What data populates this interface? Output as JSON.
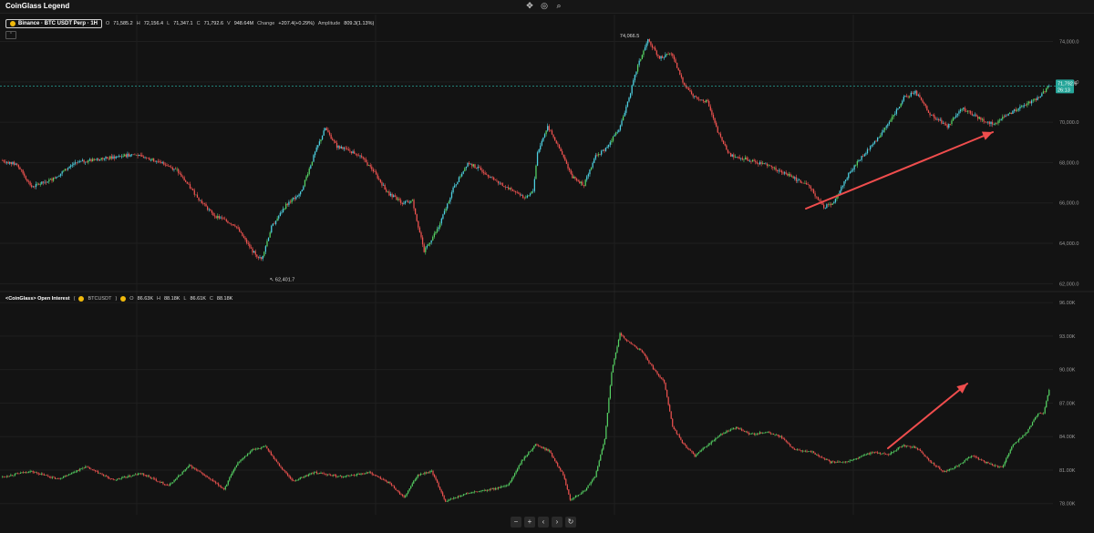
{
  "app": {
    "title": "CoinGlass Legend"
  },
  "toolbar": {
    "icons": [
      "crosshair-icon",
      "camera-icon",
      "search-icon"
    ]
  },
  "price_legend": {
    "symbol": "Binance · BTC USDT Perp · 1H",
    "open_label": "O",
    "open": "71,585.2",
    "high_label": "H",
    "high": "72,156.4",
    "low_label": "L",
    "low": "71,347.1",
    "close_label": "C",
    "close": "71,792.6",
    "volume_label": "V",
    "volume": "948.64M",
    "change_label": "Change",
    "change": "+207.4(+0.29%)",
    "amplitude_label": "Amplitude",
    "amplitude": "809.3(1.13%)"
  },
  "oi_legend": {
    "title": "<CoinGlass> Open Interest",
    "symbol": "BTCUSDT",
    "open_label": "O",
    "open": "86.63K",
    "high_label": "H",
    "high": "88.18K",
    "low_label": "L",
    "low": "86.61K",
    "close_label": "C",
    "close": "88.18K"
  },
  "price_tag": {
    "price": "71,792.6",
    "countdown": "26:13",
    "color": "#26a69a"
  },
  "colors": {
    "up": "#56d364",
    "down": "#ef5350",
    "up_price": "#4dd0e1",
    "arrow": "#ef4d4d"
  },
  "bottom_nav": [
    "−",
    "+",
    "‹",
    "›",
    "↻"
  ],
  "chart_data": [
    {
      "type": "candlestick",
      "title": "Binance · BTC USDT Perp · 1H",
      "y_ticks": [
        "74,000.0",
        "72,000.0",
        "70,000.0",
        "68,000.0",
        "66,000.0",
        "64,000.0",
        "62,000.0"
      ],
      "ylim": [
        61700,
        74700
      ],
      "high_marker": "74,066.5",
      "low_marker": "62,401.7",
      "last": 71792.6,
      "key_points": [
        [
          0,
          68100
        ],
        [
          10,
          67900
        ],
        [
          20,
          66800
        ],
        [
          35,
          67200
        ],
        [
          50,
          68000
        ],
        [
          70,
          68200
        ],
        [
          90,
          68400
        ],
        [
          110,
          68000
        ],
        [
          120,
          67600
        ],
        [
          135,
          66200
        ],
        [
          145,
          65400
        ],
        [
          160,
          64900
        ],
        [
          172,
          63600
        ],
        [
          178,
          63200
        ],
        [
          185,
          64800
        ],
        [
          195,
          65900
        ],
        [
          205,
          66500
        ],
        [
          215,
          68500
        ],
        [
          222,
          69700
        ],
        [
          230,
          68800
        ],
        [
          245,
          68400
        ],
        [
          255,
          67600
        ],
        [
          265,
          66500
        ],
        [
          275,
          66000
        ],
        [
          282,
          66100
        ],
        [
          290,
          63600
        ],
        [
          300,
          64800
        ],
        [
          310,
          66700
        ],
        [
          320,
          68000
        ],
        [
          330,
          67600
        ],
        [
          345,
          66800
        ],
        [
          355,
          66500
        ],
        [
          360,
          66200
        ],
        [
          365,
          66600
        ],
        [
          368,
          68500
        ],
        [
          375,
          69800
        ],
        [
          383,
          68700
        ],
        [
          392,
          67300
        ],
        [
          400,
          66900
        ],
        [
          408,
          68300
        ],
        [
          415,
          68700
        ],
        [
          425,
          69800
        ],
        [
          432,
          71500
        ],
        [
          437,
          72800
        ],
        [
          444,
          74066.5
        ],
        [
          452,
          73200
        ],
        [
          460,
          73400
        ],
        [
          468,
          72000
        ],
        [
          475,
          71300
        ],
        [
          485,
          71000
        ],
        [
          492,
          69500
        ],
        [
          500,
          68400
        ],
        [
          510,
          68200
        ],
        [
          525,
          67900
        ],
        [
          540,
          67400
        ],
        [
          555,
          66800
        ],
        [
          565,
          65800
        ],
        [
          572,
          66000
        ],
        [
          580,
          67200
        ],
        [
          590,
          68200
        ],
        [
          600,
          69000
        ],
        [
          610,
          70000
        ],
        [
          620,
          71200
        ],
        [
          628,
          71500
        ],
        [
          638,
          70400
        ],
        [
          650,
          69800
        ],
        [
          660,
          70700
        ],
        [
          672,
          70200
        ],
        [
          682,
          69900
        ],
        [
          692,
          70400
        ],
        [
          702,
          70800
        ],
        [
          712,
          71200
        ],
        [
          720,
          71792.6
        ]
      ]
    },
    {
      "type": "candlestick",
      "title": "<CoinGlass> Open Interest",
      "y_ticks": [
        "96.00K",
        "93.00K",
        "90.00K",
        "87.00K",
        "84.00K",
        "81.00K",
        "78.00K"
      ],
      "ylim": [
        77000,
        96500
      ],
      "last": 88180,
      "key_points": [
        [
          0,
          80400
        ],
        [
          20,
          80900
        ],
        [
          40,
          80200
        ],
        [
          60,
          81300
        ],
        [
          80,
          80100
        ],
        [
          100,
          80700
        ],
        [
          120,
          79600
        ],
        [
          135,
          81400
        ],
        [
          145,
          80600
        ],
        [
          160,
          79300
        ],
        [
          170,
          81700
        ],
        [
          180,
          82800
        ],
        [
          190,
          83100
        ],
        [
          200,
          81400
        ],
        [
          210,
          80000
        ],
        [
          225,
          80800
        ],
        [
          245,
          80400
        ],
        [
          265,
          80800
        ],
        [
          280,
          79800
        ],
        [
          290,
          78500
        ],
        [
          300,
          80600
        ],
        [
          310,
          80900
        ],
        [
          320,
          78200
        ],
        [
          335,
          78900
        ],
        [
          350,
          79200
        ],
        [
          365,
          79600
        ],
        [
          375,
          81800
        ],
        [
          385,
          83300
        ],
        [
          395,
          82700
        ],
        [
          405,
          80600
        ],
        [
          410,
          78400
        ],
        [
          420,
          79100
        ],
        [
          428,
          80400
        ],
        [
          435,
          83800
        ],
        [
          440,
          89800
        ],
        [
          446,
          93200
        ],
        [
          452,
          92500
        ],
        [
          462,
          91600
        ],
        [
          470,
          90100
        ],
        [
          478,
          88900
        ],
        [
          484,
          84900
        ],
        [
          492,
          83300
        ],
        [
          500,
          82300
        ],
        [
          510,
          83300
        ],
        [
          520,
          84300
        ],
        [
          530,
          84800
        ],
        [
          540,
          84200
        ],
        [
          552,
          84400
        ],
        [
          562,
          84000
        ],
        [
          572,
          82800
        ],
        [
          585,
          82600
        ],
        [
          598,
          81700
        ],
        [
          612,
          81800
        ],
        [
          628,
          82600
        ],
        [
          640,
          82400
        ],
        [
          650,
          83200
        ],
        [
          660,
          83000
        ],
        [
          670,
          81800
        ],
        [
          680,
          80800
        ],
        [
          690,
          81400
        ],
        [
          700,
          82300
        ],
        [
          712,
          81600
        ],
        [
          722,
          81200
        ],
        [
          730,
          83300
        ],
        [
          740,
          84400
        ],
        [
          748,
          86100
        ],
        [
          752,
          86100
        ],
        [
          756,
          88180
        ]
      ]
    }
  ]
}
